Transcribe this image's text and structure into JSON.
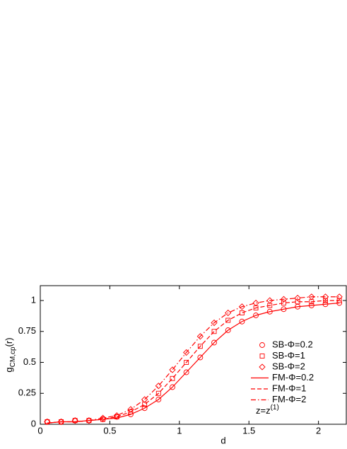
{
  "chart_data": {
    "type": "line",
    "xlabel": "d",
    "ylabel": {
      "base": "g",
      "sub": "CM,cp",
      "tail": "(r)"
    },
    "annotation": {
      "base": "z=z",
      "sup": "(1)"
    },
    "xlim": [
      0,
      2.2
    ],
    "ylim": [
      0,
      1.12
    ],
    "xticks": [
      0,
      0.5,
      1,
      1.5,
      2
    ],
    "yticks": [
      0,
      0.25,
      0.5,
      0.75,
      1
    ],
    "x": [
      0.05,
      0.15,
      0.25,
      0.35,
      0.45,
      0.55,
      0.65,
      0.75,
      0.85,
      0.95,
      1.05,
      1.15,
      1.25,
      1.35,
      1.45,
      1.55,
      1.65,
      1.75,
      1.85,
      1.95,
      2.05,
      2.15
    ],
    "series": [
      {
        "name": "SB-Φ=0.2",
        "color": "#ff0000",
        "marker": "circle",
        "values": [
          0.02,
          0.02,
          0.03,
          0.03,
          0.04,
          0.06,
          0.08,
          0.13,
          0.2,
          0.3,
          0.42,
          0.54,
          0.66,
          0.76,
          0.83,
          0.88,
          0.91,
          0.93,
          0.95,
          0.96,
          0.97,
          0.98
        ]
      },
      {
        "name": "SB-Φ=1",
        "color": "#ff0000",
        "marker": "square",
        "values": [
          0.02,
          0.02,
          0.03,
          0.03,
          0.04,
          0.06,
          0.1,
          0.16,
          0.25,
          0.37,
          0.5,
          0.63,
          0.75,
          0.84,
          0.9,
          0.94,
          0.96,
          0.98,
          0.99,
          0.99,
          1.0,
          1.0
        ]
      },
      {
        "name": "SB-Φ=2",
        "color": "#ff0000",
        "marker": "diamond",
        "values": [
          0.02,
          0.02,
          0.03,
          0.03,
          0.05,
          0.07,
          0.12,
          0.2,
          0.31,
          0.44,
          0.58,
          0.71,
          0.82,
          0.9,
          0.95,
          0.98,
          1.0,
          1.01,
          1.02,
          1.03,
          1.03,
          1.03
        ]
      },
      {
        "name": "FM-Φ=0.2",
        "color": "#ff0000",
        "dash": "solid",
        "values": [
          0.01,
          0.02,
          0.02,
          0.03,
          0.04,
          0.05,
          0.08,
          0.13,
          0.2,
          0.3,
          0.42,
          0.54,
          0.66,
          0.76,
          0.83,
          0.88,
          0.91,
          0.93,
          0.95,
          0.96,
          0.97,
          0.98
        ]
      },
      {
        "name": "FM-Φ=1",
        "color": "#ff0000",
        "dash": "dashed",
        "values": [
          0.01,
          0.02,
          0.02,
          0.03,
          0.04,
          0.06,
          0.1,
          0.16,
          0.25,
          0.37,
          0.5,
          0.63,
          0.75,
          0.84,
          0.9,
          0.94,
          0.96,
          0.98,
          0.99,
          0.99,
          1.0,
          1.0
        ]
      },
      {
        "name": "FM-Φ=2",
        "color": "#ff0000",
        "dash": "dashdot",
        "values": [
          0.01,
          0.02,
          0.02,
          0.03,
          0.05,
          0.07,
          0.12,
          0.2,
          0.31,
          0.44,
          0.58,
          0.71,
          0.82,
          0.9,
          0.95,
          0.98,
          1.0,
          1.01,
          1.02,
          1.03,
          1.03,
          1.03
        ]
      }
    ]
  }
}
